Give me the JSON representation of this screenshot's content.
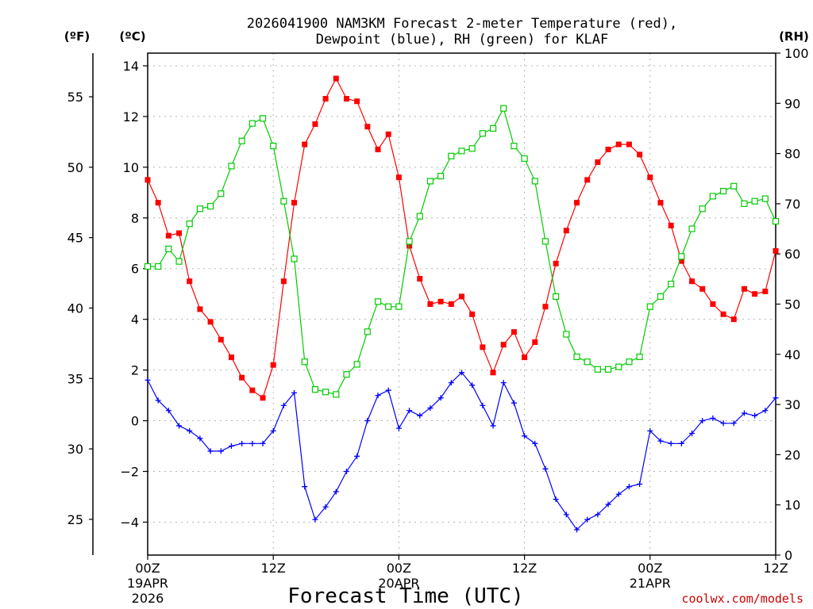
{
  "chart_data": {
    "type": "line",
    "title_line1": "2026041900 NAM3KM Forecast 2-meter Temperature (red),",
    "title_line2": "Dewpoint (blue), RH (green) for KLAF",
    "xlabel": "Forecast Time (UTC)",
    "unit_f": "(ºF)",
    "unit_c": "(ºC)",
    "unit_rh": "(RH)",
    "credit": "coolwx.com/models",
    "xlim": [
      0,
      60
    ],
    "ylim_c": [
      -5.3,
      14.5
    ],
    "ylim_rh": [
      0,
      100
    ],
    "x_ticks": [
      {
        "x": 0,
        "l1": "00Z",
        "l2": "19APR",
        "l3": "2026"
      },
      {
        "x": 12,
        "l1": "12Z",
        "l2": "",
        "l3": ""
      },
      {
        "x": 24,
        "l1": "00Z",
        "l2": "20APR",
        "l3": ""
      },
      {
        "x": 36,
        "l1": "12Z",
        "l2": "",
        "l3": ""
      },
      {
        "x": 48,
        "l1": "00Z",
        "l2": "21APR",
        "l3": ""
      },
      {
        "x": 60,
        "l1": "12Z",
        "l2": "",
        "l3": ""
      }
    ],
    "c_ticks": [
      {
        "v": 14,
        "t": "14"
      },
      {
        "v": 12,
        "t": "12"
      },
      {
        "v": 10,
        "t": "10"
      },
      {
        "v": 8,
        "t": "8"
      },
      {
        "v": 6,
        "t": "6"
      },
      {
        "v": 4,
        "t": "4"
      },
      {
        "v": 2,
        "t": "2"
      },
      {
        "v": 0,
        "t": "0"
      },
      {
        "v": -2,
        "t": "−2"
      },
      {
        "v": -4,
        "t": "−4"
      }
    ],
    "f_ticks": [
      {
        "v": 55,
        "t": "55"
      },
      {
        "v": 50,
        "t": "50"
      },
      {
        "v": 45,
        "t": "45"
      },
      {
        "v": 40,
        "t": "40"
      },
      {
        "v": 35,
        "t": "35"
      },
      {
        "v": 30,
        "t": "30"
      },
      {
        "v": 25,
        "t": "25"
      }
    ],
    "rh_ticks": [
      {
        "v": 100,
        "t": "100"
      },
      {
        "v": 90,
        "t": "90"
      },
      {
        "v": 80,
        "t": "80"
      },
      {
        "v": 70,
        "t": "70"
      },
      {
        "v": 60,
        "t": "60"
      },
      {
        "v": 50,
        "t": "50"
      },
      {
        "v": 40,
        "t": "40"
      },
      {
        "v": 30,
        "t": "30"
      },
      {
        "v": 20,
        "t": "20"
      },
      {
        "v": 10,
        "t": "10"
      },
      {
        "v": 0,
        "t": "0"
      }
    ],
    "series": [
      {
        "name": "2-meter Temperature (°C)",
        "color": "#ff0000",
        "marker": "filled-square",
        "axis": "c",
        "values": [
          9.5,
          8.6,
          7.3,
          7.4,
          5.5,
          4.4,
          3.9,
          3.2,
          2.5,
          1.7,
          1.2,
          0.9,
          2.2,
          5.5,
          8.6,
          10.9,
          11.7,
          12.7,
          13.5,
          12.7,
          12.6,
          11.6,
          10.7,
          11.3,
          9.6,
          6.9,
          5.6,
          4.6,
          4.7,
          4.6,
          4.9,
          4.2,
          2.9,
          1.9,
          3.0,
          3.5,
          2.5,
          3.1,
          4.5,
          6.2,
          7.5,
          8.6,
          9.5,
          10.2,
          10.7,
          10.9,
          10.9,
          10.5,
          9.6,
          8.6,
          7.7,
          6.3,
          5.5,
          5.2,
          4.6,
          4.2,
          4.0,
          5.2,
          5.0,
          5.1,
          6.7
        ]
      },
      {
        "name": "Dewpoint (°C)",
        "color": "#0000ff",
        "marker": "plus",
        "axis": "c",
        "values": [
          1.6,
          0.8,
          0.4,
          -0.2,
          -0.4,
          -0.7,
          -1.2,
          -1.2,
          -1.0,
          -0.9,
          -0.9,
          -0.9,
          -0.4,
          0.6,
          1.1,
          -2.6,
          -3.9,
          -3.4,
          -2.8,
          -2.0,
          -1.4,
          0.0,
          1.0,
          1.2,
          -0.3,
          0.4,
          0.2,
          0.5,
          0.9,
          1.5,
          1.9,
          1.4,
          0.6,
          -0.2,
          1.5,
          0.7,
          -0.6,
          -0.9,
          -1.9,
          -3.1,
          -3.7,
          -4.3,
          -3.9,
          -3.7,
          -3.3,
          -2.9,
          -2.6,
          -2.5,
          -0.4,
          -0.8,
          -0.9,
          -0.9,
          -0.5,
          -0.0,
          0.1,
          -0.1,
          -0.1,
          0.3,
          0.2,
          0.4,
          0.9
        ]
      },
      {
        "name": "RH (%)",
        "color": "#00cc00",
        "marker": "open-square",
        "axis": "rh",
        "values": [
          57.5,
          57.5,
          61.0,
          58.5,
          66.0,
          69.0,
          69.5,
          72.0,
          77.5,
          82.5,
          86.0,
          87.0,
          81.5,
          70.5,
          59.0,
          38.5,
          33.0,
          32.5,
          32.0,
          36.0,
          38.0,
          44.5,
          50.5,
          49.5,
          49.5,
          62.5,
          67.5,
          74.5,
          75.5,
          79.5,
          80.5,
          81.0,
          84.0,
          85.0,
          89.0,
          81.5,
          79.0,
          74.5,
          62.5,
          51.5,
          44.0,
          39.5,
          38.5,
          37.0,
          37.0,
          37.5,
          38.5,
          39.5,
          49.5,
          51.5,
          54.0,
          59.5,
          65.0,
          69.0,
          71.5,
          72.5,
          73.5,
          70.0,
          70.5,
          71.0,
          66.5
        ]
      }
    ]
  }
}
